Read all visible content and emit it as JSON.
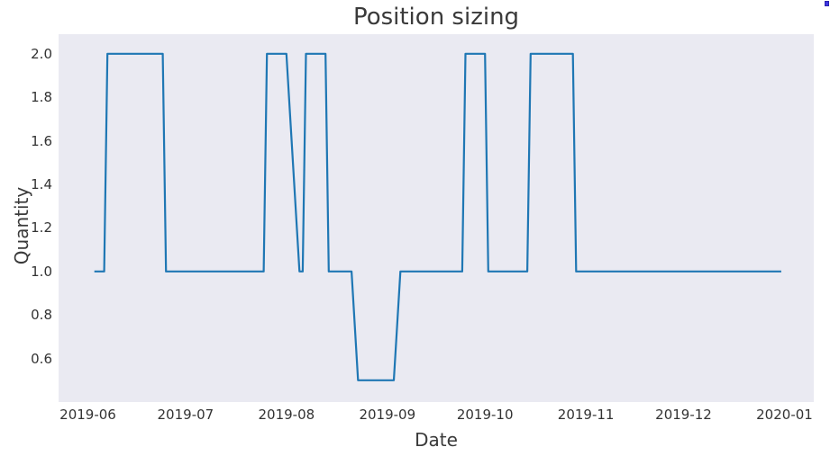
{
  "chart_data": {
    "type": "line",
    "title": "Position sizing",
    "xlabel": "Date",
    "ylabel": "Quantity",
    "legend": "none",
    "grid": false,
    "colors": {
      "line": "#1f77b4",
      "plot_background": "#eaeaf2",
      "figure_background": "#ffffff",
      "text": "#3a3a3a",
      "tick_text": "#333333"
    },
    "xlim": [
      "2019-05-23",
      "2020-01-10"
    ],
    "ylim": [
      0.4,
      2.09
    ],
    "xticks": [
      {
        "date": "2019-06-01",
        "label": "2019-06"
      },
      {
        "date": "2019-07-01",
        "label": "2019-07"
      },
      {
        "date": "2019-08-01",
        "label": "2019-08"
      },
      {
        "date": "2019-09-01",
        "label": "2019-09"
      },
      {
        "date": "2019-10-01",
        "label": "2019-10"
      },
      {
        "date": "2019-11-01",
        "label": "2019-11"
      },
      {
        "date": "2019-12-01",
        "label": "2019-12"
      },
      {
        "date": "2020-01-01",
        "label": "2020-01"
      }
    ],
    "yticks": [
      {
        "value": 0.6,
        "label": "0.6"
      },
      {
        "value": 0.8,
        "label": "0.8"
      },
      {
        "value": 1.0,
        "label": "1.0"
      },
      {
        "value": 1.2,
        "label": "1.2"
      },
      {
        "value": 1.4,
        "label": "1.4"
      },
      {
        "value": 1.6,
        "label": "1.6"
      },
      {
        "value": 1.8,
        "label": "1.8"
      },
      {
        "value": 2.0,
        "label": "2.0"
      }
    ],
    "series": [
      {
        "name": "Quantity",
        "points": [
          [
            "2019-06-03",
            1.0
          ],
          [
            "2019-06-06",
            1.0
          ],
          [
            "2019-06-07",
            2.0
          ],
          [
            "2019-06-24",
            2.0
          ],
          [
            "2019-06-25",
            1.0
          ],
          [
            "2019-07-25",
            1.0
          ],
          [
            "2019-07-26",
            2.0
          ],
          [
            "2019-08-01",
            2.0
          ],
          [
            "2019-08-05",
            1.0
          ],
          [
            "2019-08-06",
            1.0
          ],
          [
            "2019-08-07",
            2.0
          ],
          [
            "2019-08-13",
            2.0
          ],
          [
            "2019-08-14",
            1.0
          ],
          [
            "2019-08-21",
            1.0
          ],
          [
            "2019-08-23",
            0.5
          ],
          [
            "2019-09-03",
            0.5
          ],
          [
            "2019-09-05",
            1.0
          ],
          [
            "2019-09-24",
            1.0
          ],
          [
            "2019-09-25",
            2.0
          ],
          [
            "2019-10-01",
            2.0
          ],
          [
            "2019-10-02",
            1.0
          ],
          [
            "2019-10-14",
            1.0
          ],
          [
            "2019-10-15",
            2.0
          ],
          [
            "2019-10-28",
            2.0
          ],
          [
            "2019-10-29",
            1.0
          ],
          [
            "2019-12-31",
            1.0
          ]
        ]
      }
    ]
  },
  "artifacts": {
    "corner_dot_color": "#3e36e0"
  }
}
